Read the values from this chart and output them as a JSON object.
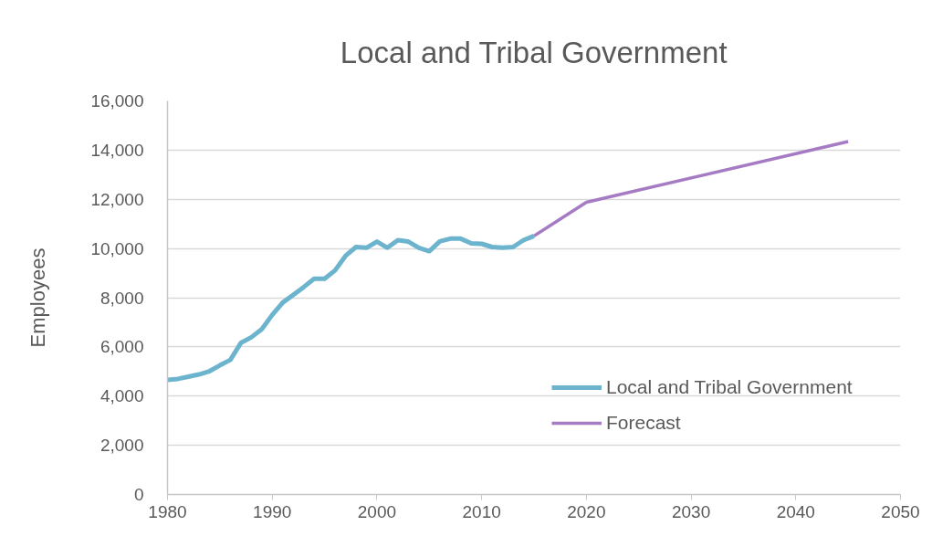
{
  "chart_data": {
    "type": "line",
    "title": "Local and Tribal Government",
    "ylabel": "Employees",
    "xlim": [
      1980,
      2050
    ],
    "xticks": [
      1980,
      1990,
      2000,
      2010,
      2020,
      2030,
      2040,
      2050
    ],
    "ylim": [
      0,
      16000
    ],
    "yticks": [
      0,
      {
        "value": 2000,
        "label": "2,000"
      },
      {
        "value": 4000,
        "label": "4,000"
      },
      {
        "value": 6000,
        "label": "6,000"
      },
      {
        "value": 8000,
        "label": "8,000"
      },
      {
        "value": 10000,
        "label": "10,000"
      },
      {
        "value": 12000,
        "label": "12,000"
      },
      {
        "value": 14000,
        "label": "14,000"
      },
      {
        "value": 16000,
        "label": "16,000"
      }
    ],
    "grid": "y",
    "legend": "bottom right",
    "series": [
      {
        "name": "Local and Tribal Government",
        "color": "#6cb4cd",
        "x": [
          1980,
          1981,
          1982,
          1983,
          1984,
          1985,
          1986,
          1987,
          1988,
          1989,
          1990,
          1991,
          1992,
          1993,
          1994,
          1995,
          1996,
          1997,
          1998,
          1999,
          2000,
          2001,
          2002,
          2003,
          2004,
          2005,
          2006,
          2007,
          2008,
          2009,
          2010,
          2011,
          2012,
          2013,
          2014,
          2015
        ],
        "values": [
          4660,
          4700,
          4790,
          4880,
          5010,
          5250,
          5470,
          6160,
          6390,
          6720,
          7300,
          7800,
          8110,
          8430,
          8770,
          8770,
          9110,
          9700,
          10060,
          10030,
          10280,
          10030,
          10340,
          10280,
          10030,
          9890,
          10290,
          10400,
          10400,
          10210,
          10190,
          10060,
          10030,
          10060,
          10340,
          10510
        ]
      },
      {
        "name": "Forecast",
        "color": "#a57cc4",
        "x": [
          2015,
          2020,
          2045
        ],
        "values": [
          10510,
          11880,
          14350
        ]
      }
    ]
  }
}
